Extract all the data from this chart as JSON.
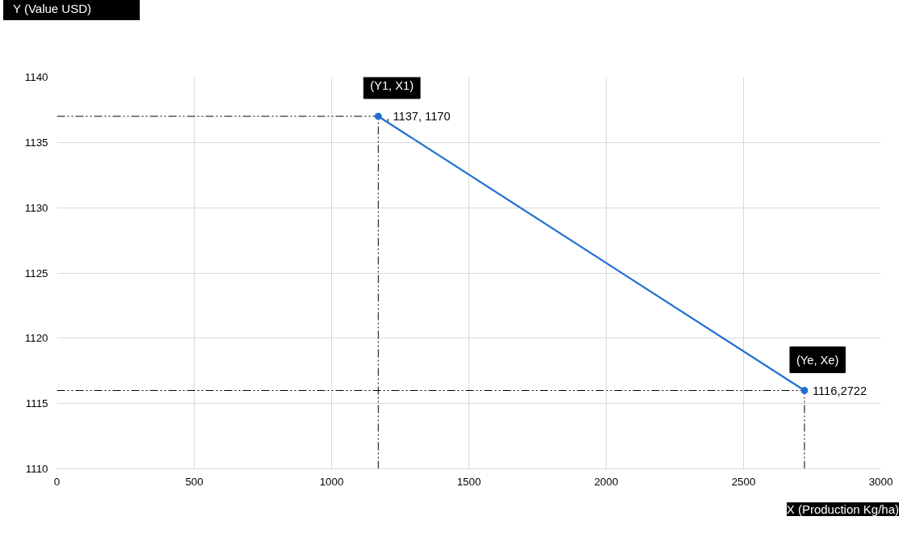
{
  "chart_data": {
    "type": "line",
    "xlabel": "X (Production Kg/ha)",
    "ylabel": "Y (Value USD)",
    "x": [
      1170,
      2722
    ],
    "series": [
      {
        "color": "#1f6fd1",
        "values": [
          1137,
          1116
        ],
        "value_labels": [
          ", 1137, 1170",
          "1116,2722"
        ]
      }
    ],
    "xlim": [
      0,
      3000
    ],
    "xticks": [
      0,
      500,
      1000,
      1500,
      2000,
      2500,
      3000
    ],
    "ylim": [
      1110,
      1140
    ],
    "yticks": [
      1110,
      1115,
      1120,
      1125,
      1130,
      1135,
      1140
    ],
    "grid": true,
    "marker": "circle",
    "line_style": "solid",
    "ref_lines": [
      {
        "axis": "y",
        "value": 1137,
        "color": "#000000",
        "line_style": "dashdot"
      },
      {
        "axis": "x",
        "value": 1170,
        "color": "#000000",
        "line_style": "dashdot"
      },
      {
        "axis": "y",
        "value": 1116,
        "color": "#000000",
        "line_style": "dashdot"
      },
      {
        "axis": "x",
        "value": 2722,
        "color": "#000000",
        "line_style": "dashdot"
      }
    ],
    "annotations": [
      {
        "text": "(Y1, X1)",
        "x": 1170,
        "y": 1137
      },
      {
        "text": "(Ye, Xe)",
        "x": 2722,
        "y": 1116
      }
    ]
  }
}
